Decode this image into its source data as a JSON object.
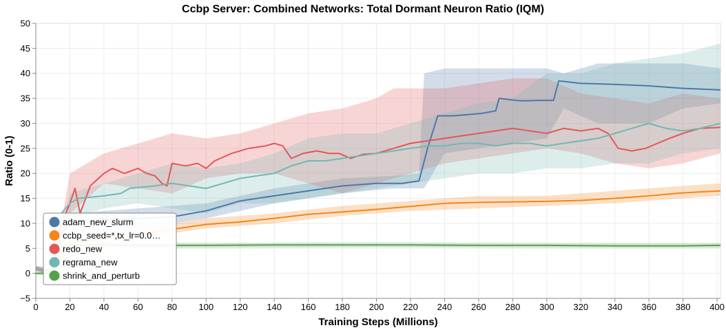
{
  "chart_data": {
    "type": "line",
    "title": "Ccbp Server: Combined Networks: Total Dormant Neuron Ratio (IQM)",
    "xlabel": "Training Steps (Millions)",
    "ylabel": "Ratio (0-1)",
    "xlim": [
      0,
      402
    ],
    "ylim": [
      -5,
      50
    ],
    "x_ticks": [
      0,
      20,
      40,
      60,
      80,
      100,
      120,
      140,
      160,
      180,
      200,
      220,
      240,
      260,
      280,
      300,
      320,
      340,
      360,
      380,
      400
    ],
    "y_ticks": [
      -5,
      0,
      5,
      10,
      15,
      20,
      25,
      30,
      35,
      40,
      45,
      50
    ],
    "grid": true,
    "legend_position": "bottom-left",
    "series": [
      {
        "name": "adam_new_slurm",
        "color": "#4c78a8",
        "points": [
          [
            0,
            1
          ],
          [
            5,
            0.5
          ],
          [
            10,
            0.5
          ],
          [
            15,
            8
          ],
          [
            20,
            10
          ],
          [
            30,
            10.5
          ],
          [
            40,
            10.8
          ],
          [
            60,
            11
          ],
          [
            80,
            11.3
          ],
          [
            100,
            12.5
          ],
          [
            120,
            14.5
          ],
          [
            140,
            15.5
          ],
          [
            160,
            16.5
          ],
          [
            180,
            17.5
          ],
          [
            200,
            18
          ],
          [
            215,
            18
          ],
          [
            225,
            18.5
          ],
          [
            230,
            25
          ],
          [
            236,
            31.5
          ],
          [
            245,
            31.5
          ],
          [
            262,
            32
          ],
          [
            270,
            32.5
          ],
          [
            272,
            35
          ],
          [
            285,
            34.5
          ],
          [
            296,
            34.6
          ],
          [
            304,
            34.6
          ],
          [
            307,
            38.5
          ],
          [
            320,
            38
          ],
          [
            340,
            37.8
          ],
          [
            360,
            37.5
          ],
          [
            380,
            37
          ],
          [
            402,
            36.7
          ]
        ],
        "band": [
          [
            0,
            0.5,
            1.5
          ],
          [
            10,
            0,
            1
          ],
          [
            20,
            8,
            12
          ],
          [
            60,
            9,
            13
          ],
          [
            100,
            11,
            14
          ],
          [
            140,
            14,
            17
          ],
          [
            180,
            16,
            19
          ],
          [
            210,
            17,
            19.5
          ],
          [
            225,
            17,
            20
          ],
          [
            228,
            17,
            40
          ],
          [
            240,
            24,
            41
          ],
          [
            260,
            25,
            41
          ],
          [
            280,
            26,
            41
          ],
          [
            300,
            27,
            41
          ],
          [
            310,
            33,
            40
          ],
          [
            330,
            30,
            42
          ],
          [
            360,
            30,
            42
          ],
          [
            380,
            33,
            42
          ],
          [
            402,
            34,
            41
          ]
        ]
      },
      {
        "name": "ccbp_seed=*,tx_lr=0.0…",
        "color": "#f58518",
        "points": [
          [
            0,
            1
          ],
          [
            5,
            0.5
          ],
          [
            10,
            0
          ],
          [
            20,
            6
          ],
          [
            40,
            7
          ],
          [
            60,
            7.8
          ],
          [
            80,
            8.8
          ],
          [
            100,
            9.8
          ],
          [
            120,
            10.3
          ],
          [
            140,
            11
          ],
          [
            160,
            11.8
          ],
          [
            180,
            12.3
          ],
          [
            200,
            12.8
          ],
          [
            220,
            13.4
          ],
          [
            240,
            14
          ],
          [
            260,
            14.2
          ],
          [
            280,
            14.3
          ],
          [
            300,
            14.4
          ],
          [
            320,
            14.6
          ],
          [
            340,
            15
          ],
          [
            360,
            15.5
          ],
          [
            380,
            16.1
          ],
          [
            402,
            16.5
          ]
        ],
        "band": [
          [
            0,
            0.5,
            1.5
          ],
          [
            10,
            -0.5,
            0.5
          ],
          [
            20,
            5,
            7
          ],
          [
            60,
            7,
            9
          ],
          [
            100,
            9,
            11
          ],
          [
            140,
            10,
            12
          ],
          [
            180,
            11.5,
            13.5
          ],
          [
            220,
            12.5,
            14.5
          ],
          [
            260,
            13,
            15.5
          ],
          [
            300,
            13.5,
            15.5
          ],
          [
            340,
            14,
            16.5
          ],
          [
            380,
            15,
            17.5
          ],
          [
            402,
            15.5,
            18
          ]
        ]
      },
      {
        "name": "redo_new",
        "color": "#e45756",
        "points": [
          [
            0,
            1
          ],
          [
            5,
            0.5
          ],
          [
            10,
            0
          ],
          [
            15,
            10
          ],
          [
            20,
            14
          ],
          [
            23,
            17
          ],
          [
            26,
            12
          ],
          [
            32,
            17.5
          ],
          [
            40,
            20
          ],
          [
            45,
            21
          ],
          [
            52,
            20
          ],
          [
            60,
            21
          ],
          [
            65,
            20
          ],
          [
            70,
            19.5
          ],
          [
            74,
            18
          ],
          [
            77,
            17.5
          ],
          [
            80,
            22
          ],
          [
            88,
            21.5
          ],
          [
            95,
            22
          ],
          [
            100,
            21
          ],
          [
            105,
            22.5
          ],
          [
            115,
            24
          ],
          [
            125,
            25
          ],
          [
            135,
            25.5
          ],
          [
            140,
            26
          ],
          [
            145,
            25.5
          ],
          [
            150,
            23
          ],
          [
            157,
            24
          ],
          [
            165,
            24.5
          ],
          [
            172,
            24
          ],
          [
            178,
            24
          ],
          [
            185,
            23
          ],
          [
            192,
            23.8
          ],
          [
            200,
            24
          ],
          [
            210,
            25
          ],
          [
            220,
            26
          ],
          [
            230,
            26.5
          ],
          [
            240,
            27
          ],
          [
            250,
            27.5
          ],
          [
            260,
            28
          ],
          [
            270,
            28.5
          ],
          [
            280,
            29
          ],
          [
            290,
            28.5
          ],
          [
            300,
            28
          ],
          [
            310,
            29
          ],
          [
            320,
            28.5
          ],
          [
            330,
            29
          ],
          [
            336,
            28
          ],
          [
            342,
            25
          ],
          [
            350,
            24.5
          ],
          [
            358,
            25
          ],
          [
            365,
            26
          ],
          [
            372,
            27
          ],
          [
            380,
            28
          ],
          [
            390,
            29
          ],
          [
            402,
            29.2
          ]
        ],
        "band": [
          [
            0,
            0.5,
            1.5
          ],
          [
            10,
            -0.5,
            0.5
          ],
          [
            20,
            12,
            20
          ],
          [
            40,
            18,
            24
          ],
          [
            60,
            17,
            26
          ],
          [
            80,
            16,
            28
          ],
          [
            100,
            19,
            27
          ],
          [
            120,
            20,
            28
          ],
          [
            140,
            20,
            30
          ],
          [
            160,
            18,
            32
          ],
          [
            180,
            16,
            33
          ],
          [
            200,
            18,
            35
          ],
          [
            210,
            19,
            37
          ],
          [
            220,
            20,
            37
          ],
          [
            240,
            22,
            37
          ],
          [
            260,
            23,
            38
          ],
          [
            280,
            24,
            39
          ],
          [
            300,
            25,
            39
          ],
          [
            320,
            24,
            36
          ],
          [
            340,
            22,
            35
          ],
          [
            360,
            21,
            34
          ],
          [
            380,
            22,
            36
          ],
          [
            402,
            24,
            35
          ]
        ]
      },
      {
        "name": "regrama_new",
        "color": "#72b7b2",
        "points": [
          [
            0,
            1
          ],
          [
            5,
            0.5
          ],
          [
            10,
            0
          ],
          [
            15,
            12
          ],
          [
            20,
            14
          ],
          [
            25,
            15
          ],
          [
            40,
            15.5
          ],
          [
            50,
            16
          ],
          [
            55,
            17
          ],
          [
            70,
            17.5
          ],
          [
            80,
            18
          ],
          [
            90,
            17.5
          ],
          [
            100,
            17
          ],
          [
            110,
            18
          ],
          [
            120,
            19
          ],
          [
            130,
            19.5
          ],
          [
            140,
            20
          ],
          [
            150,
            21.5
          ],
          [
            160,
            22.5
          ],
          [
            170,
            22.5
          ],
          [
            180,
            23
          ],
          [
            190,
            23.5
          ],
          [
            200,
            24
          ],
          [
            210,
            24.5
          ],
          [
            220,
            25
          ],
          [
            230,
            25.5
          ],
          [
            240,
            25.5
          ],
          [
            250,
            26
          ],
          [
            260,
            26
          ],
          [
            270,
            25.5
          ],
          [
            280,
            26
          ],
          [
            290,
            26
          ],
          [
            300,
            25.5
          ],
          [
            310,
            26
          ],
          [
            320,
            26.5
          ],
          [
            330,
            27
          ],
          [
            340,
            28
          ],
          [
            350,
            29
          ],
          [
            360,
            30
          ],
          [
            370,
            29
          ],
          [
            380,
            28.5
          ],
          [
            390,
            29
          ],
          [
            402,
            30
          ]
        ],
        "band": [
          [
            0,
            0.5,
            1.5
          ],
          [
            10,
            -0.5,
            0.5
          ],
          [
            20,
            11,
            16
          ],
          [
            40,
            13,
            18
          ],
          [
            60,
            14,
            20
          ],
          [
            80,
            13,
            22
          ],
          [
            100,
            12,
            21
          ],
          [
            120,
            14,
            22
          ],
          [
            140,
            14,
            24
          ],
          [
            160,
            15,
            27
          ],
          [
            180,
            16,
            28
          ],
          [
            200,
            17,
            28
          ],
          [
            220,
            18,
            30
          ],
          [
            240,
            19,
            32
          ],
          [
            260,
            20,
            34
          ],
          [
            280,
            20,
            35
          ],
          [
            300,
            21,
            40
          ],
          [
            320,
            21,
            40
          ],
          [
            340,
            22,
            42
          ],
          [
            360,
            22,
            43
          ],
          [
            380,
            24,
            44
          ],
          [
            402,
            25,
            46
          ]
        ]
      },
      {
        "name": "shrink_and_perturb",
        "color": "#54a24b",
        "points": [
          [
            0,
            0
          ],
          [
            10,
            0
          ],
          [
            15,
            5.5
          ],
          [
            20,
            5.7
          ],
          [
            60,
            5.6
          ],
          [
            100,
            5.6
          ],
          [
            140,
            5.7
          ],
          [
            180,
            5.7
          ],
          [
            220,
            5.7
          ],
          [
            260,
            5.6
          ],
          [
            300,
            5.6
          ],
          [
            340,
            5.5
          ],
          [
            380,
            5.5
          ],
          [
            402,
            5.6
          ]
        ],
        "band": [
          [
            0,
            -0.3,
            0.3
          ],
          [
            10,
            -0.3,
            0.3
          ],
          [
            15,
            5,
            6.2
          ],
          [
            100,
            5.1,
            6.1
          ],
          [
            200,
            5.2,
            6.2
          ],
          [
            300,
            5.1,
            6.1
          ],
          [
            402,
            5.1,
            6.1
          ]
        ]
      }
    ]
  }
}
